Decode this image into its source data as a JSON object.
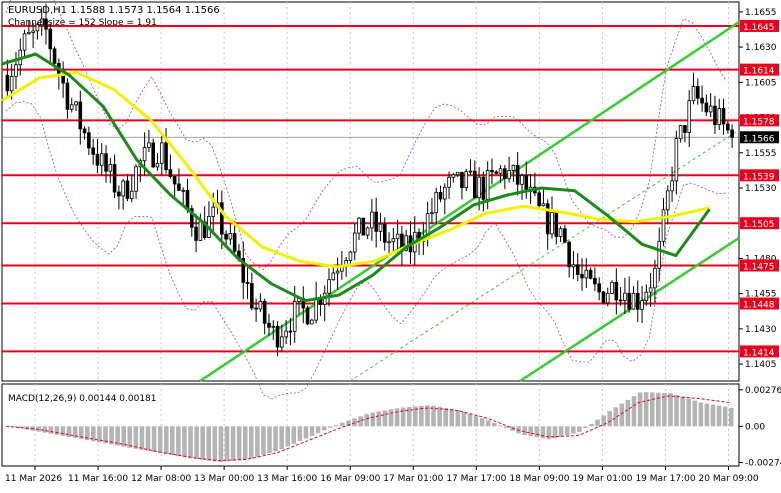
{
  "window": {
    "symbol_line": "EURUSD,H1  1.1588 1.1573 1.1564 1.1566",
    "channel_line": "Channel size = 152 Slope = 1.91"
  },
  "colors": {
    "background": "#ffffff",
    "bull_candle": "#000000",
    "bear_candle": "#000000",
    "level_line": "#e8001c",
    "level_label_bg": "#e8001c",
    "current_price_bg": "#000000",
    "ma_fast": "#1a8c1a",
    "ma_slow": "#f2f200",
    "channel": "#33cc33",
    "envelope": "#b040c0",
    "macd_hist": "#b4b4b4",
    "macd_signal": "#e8001c",
    "grid": "#c8c8c8"
  },
  "chart_data": [
    {
      "type": "candlestick",
      "title": "EURUSD,H1",
      "ylim": [
        1.1393,
        1.1662
      ],
      "grid": true,
      "y_ticks": [
        "1.1655",
        "1.1630",
        "1.1605",
        "1.1580",
        "1.1555",
        "1.1530",
        "1.1480",
        "1.1455",
        "1.1430",
        "1.1405"
      ],
      "x_labels": [
        "11 Mar 2026",
        "11 Mar 16:00",
        "12 Mar 08:00",
        "13 Mar 00:00",
        "13 Mar 16:00",
        "16 Mar 09:00",
        "17 Mar 01:00",
        "17 Mar 17:00",
        "18 Mar 09:00",
        "19 Mar 01:00",
        "19 Mar 17:00",
        "20 Mar 09:00"
      ],
      "levels": [
        "1.1645",
        "1.1614",
        "1.1578",
        "1.1539",
        "1.1505",
        "1.1475",
        "1.1448",
        "1.1414"
      ],
      "current_price": "1.1566",
      "price_path": [
        1.161,
        1.1635,
        1.1642,
        1.16,
        1.157,
        1.1545,
        1.1525,
        1.1548,
        1.156,
        1.1525,
        1.15,
        1.151,
        1.148,
        1.1445,
        1.1425,
        1.144,
        1.1445,
        1.147,
        1.1492,
        1.1505,
        1.1492,
        1.1485,
        1.1508,
        1.153,
        1.1533,
        1.153,
        1.1543,
        1.1532,
        1.151,
        1.15,
        1.1465,
        1.1455,
        1.1462,
        1.145,
        1.147,
        1.1555,
        1.1595,
        1.1582,
        1.1566
      ],
      "series": [
        {
          "name": "green moving average",
          "values": [
            1.1618,
            1.1625,
            1.161,
            1.1588,
            1.155,
            1.1525,
            1.1505,
            1.148,
            1.1462,
            1.145,
            1.1454,
            1.1468,
            1.1488,
            1.1502,
            1.1518,
            1.1525,
            1.153,
            1.1528,
            1.151,
            1.149,
            1.1482,
            1.1515
          ]
        },
        {
          "name": "yellow moving average",
          "values": [
            1.1592,
            1.1608,
            1.1612,
            1.16,
            1.1578,
            1.1545,
            1.151,
            1.1488,
            1.1478,
            1.1474,
            1.1478,
            1.149,
            1.15,
            1.1512,
            1.1517,
            1.1513,
            1.1508,
            1.1506,
            1.151,
            1.1516
          ]
        }
      ]
    },
    {
      "type": "bar",
      "title": "MACD(12,26,9) 0.00144 0.00181",
      "ylim": [
        -0.003,
        0.0032
      ],
      "y_ticks": [
        "0.00276",
        "0.00",
        "-0.00274"
      ],
      "histogram": [
        0.0,
        -0.0004,
        -0.0008,
        -0.0012,
        -0.0016,
        -0.002,
        -0.0024,
        -0.0027,
        -0.0025,
        -0.0018,
        -0.0008,
        0.0002,
        0.001,
        0.0014,
        0.0016,
        0.0012,
        0.0004,
        -0.0006,
        -0.001,
        -0.0004,
        0.0012,
        0.0026,
        0.0025,
        0.0018,
        0.0014
      ],
      "signal": [
        0.0,
        -0.0002,
        -0.0006,
        -0.001,
        -0.0014,
        -0.0019,
        -0.0023,
        -0.0026,
        -0.0025,
        -0.002,
        -0.0011,
        -0.0002,
        0.0006,
        0.0011,
        0.0014,
        0.0012,
        0.0006,
        -0.0003,
        -0.0008,
        -0.0007,
        0.0003,
        0.0018,
        0.0023,
        0.0021,
        0.0018
      ]
    }
  ]
}
